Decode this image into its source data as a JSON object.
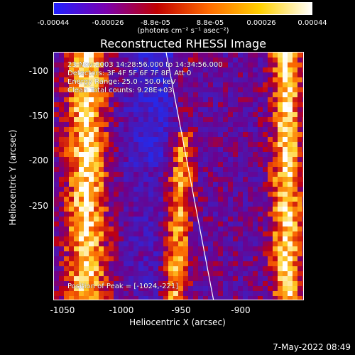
{
  "colorbar": {
    "ticks": [
      "-0.00044",
      "-0.00026",
      "-8.8e-05",
      "8.8e-05",
      "0.00026",
      "0.00044"
    ],
    "units": "(photons cm⁻² s⁻¹ asec⁻²)",
    "colors": [
      "#2020ff",
      "#7a00b0",
      "#c00000",
      "#ff6a00",
      "#ffd000",
      "#ffffff"
    ]
  },
  "title": "Reconstructed RHESSI Image",
  "info": {
    "time_range": "23-Nov-2003 14:28:56.000 to 14:34:56.000",
    "detectors": "Detectors: 3F 4F 5F 6F 7F 8F, Att 0",
    "energy_range": "Energy Range: 25.0 - 50.0 keV",
    "clean": "Clean     Total counts: 9.28E+03",
    "peak": "Position of Peak = [-1024,-221]"
  },
  "axes": {
    "x_title": "Heliocentric X (arcsec)",
    "y_title": "Heliocentric Y (arcsec)",
    "x_ticks": [
      "-1050",
      "-1000",
      "-950",
      "-900"
    ],
    "y_ticks": [
      "-100",
      "-150",
      "-200",
      "-250"
    ],
    "x_range": [
      -1060,
      -870
    ],
    "y_range": [
      -275,
      -87
    ]
  },
  "footer": "7-May-2022 08:49"
}
